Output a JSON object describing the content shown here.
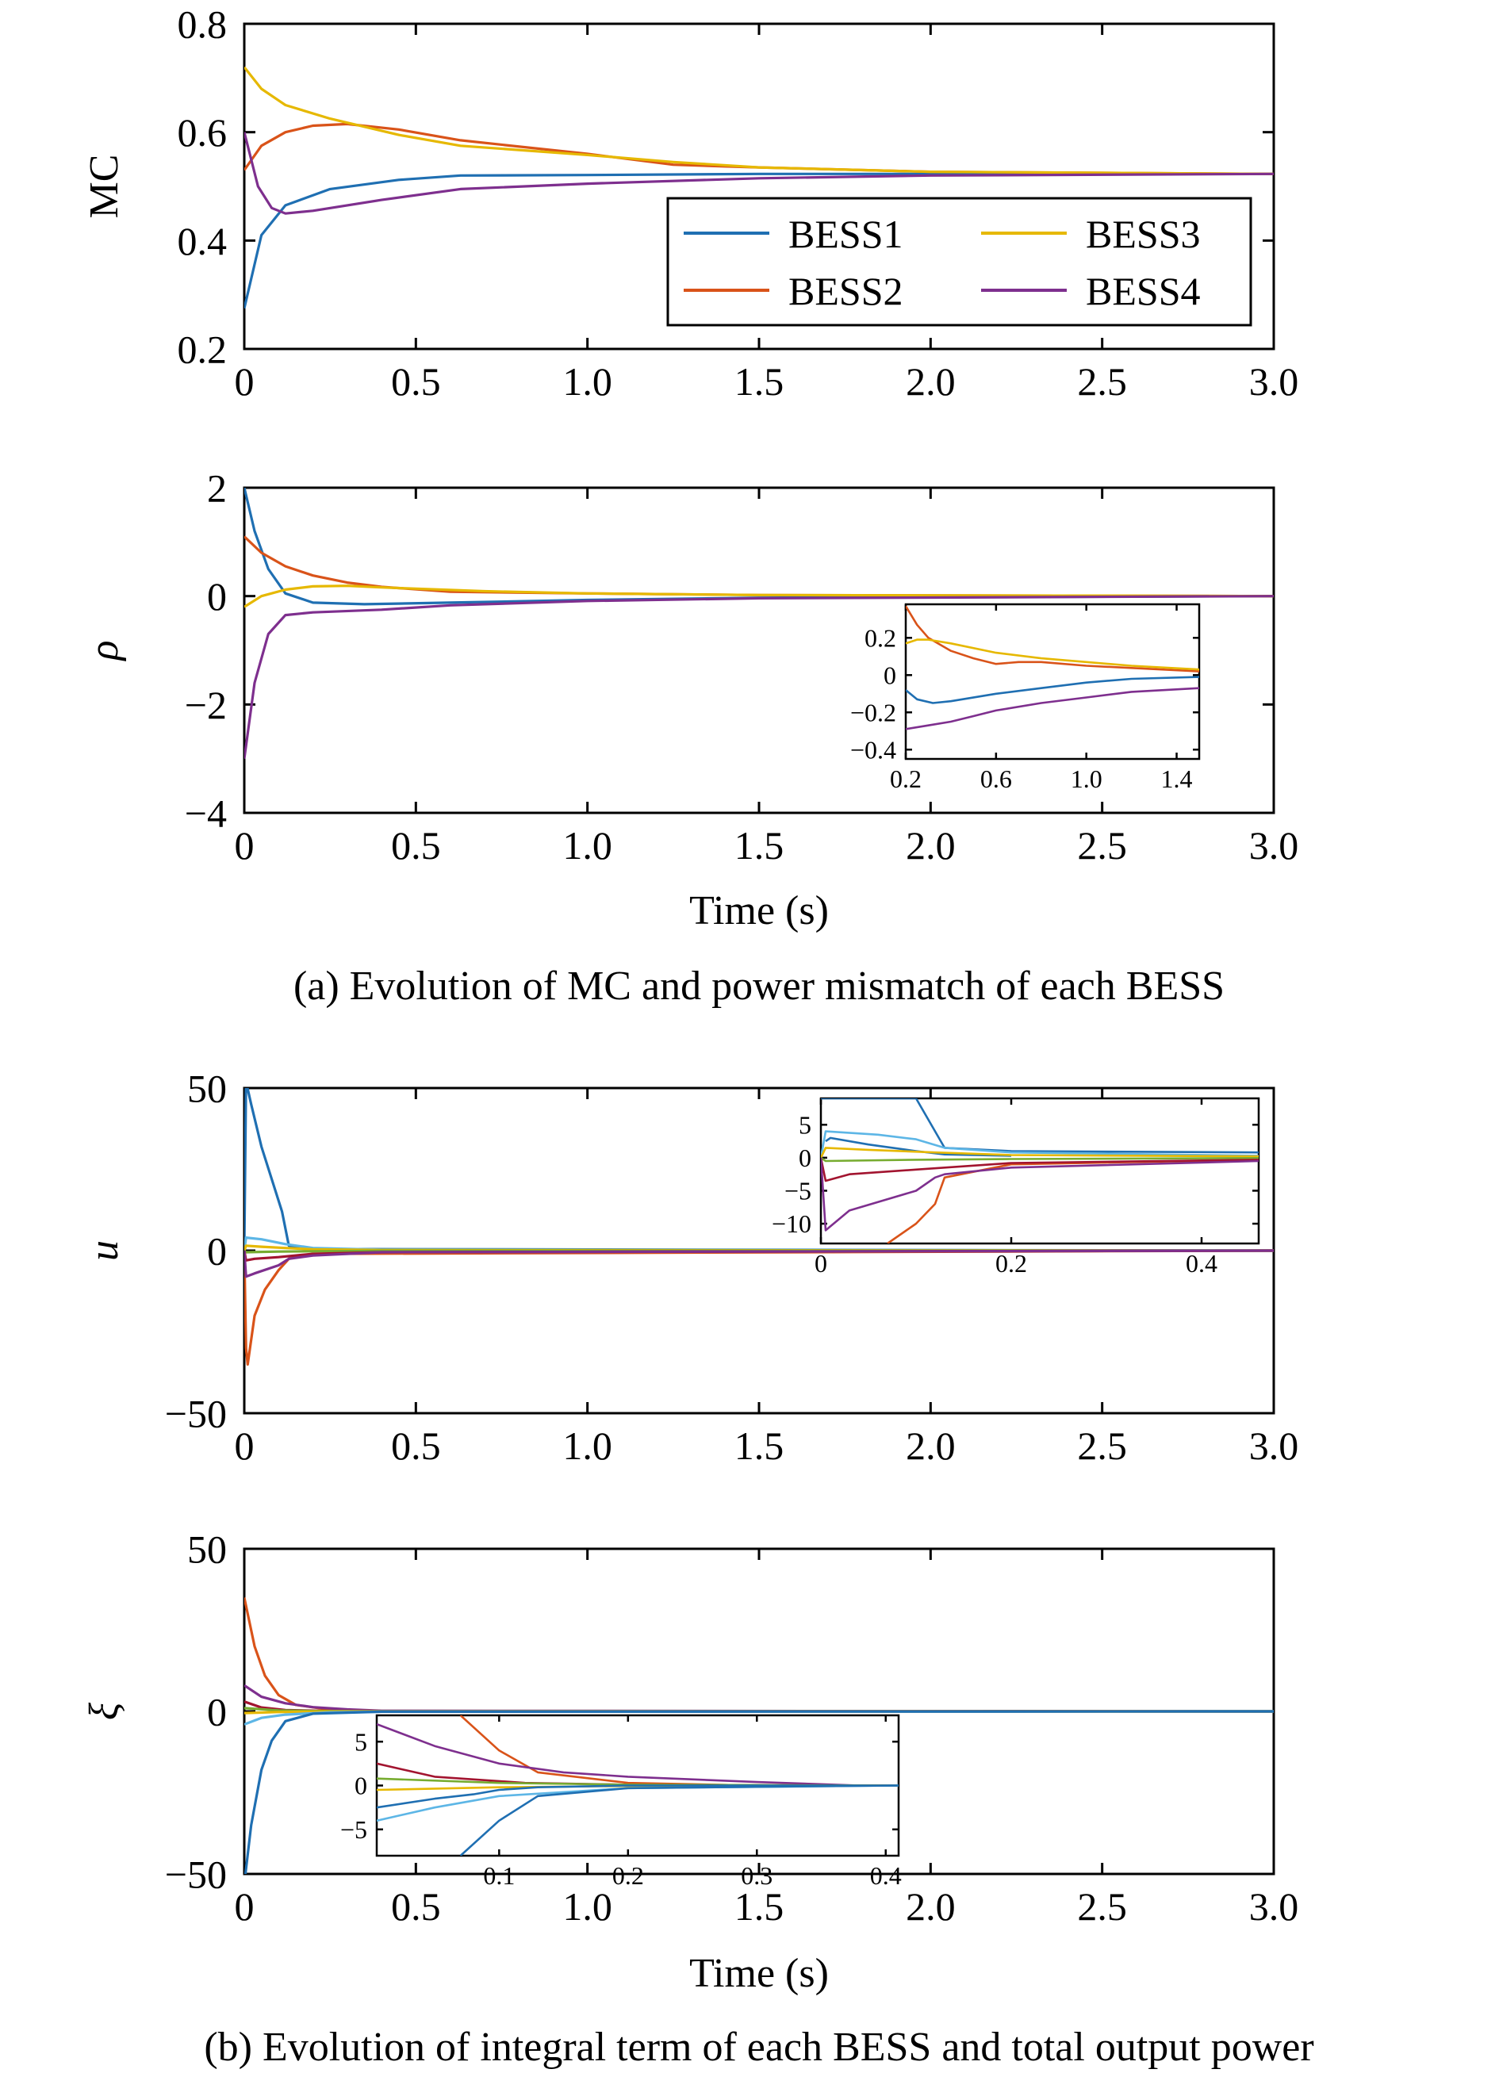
{
  "figure": {
    "caption_a": "(a) Evolution of MC and power mismatch of each BESS",
    "caption_b": "(b) Evolution of integral term of each BESS and total output power",
    "xlabel": "Time (s)"
  },
  "colors": {
    "BESS1": "#1f6fb2",
    "BESS2": "#d95319",
    "BESS3": "#e6b800",
    "BESS4": "#7e2f8e",
    "extra_lightblue": "#5db6e6",
    "extra_green": "#77ac30",
    "extra_darkred": "#a2142f",
    "extra_black": "#222222"
  },
  "chart_data": [
    {
      "id": "mc",
      "type": "line",
      "ylabel": "MC",
      "xlim": [
        0,
        3
      ],
      "ylim": [
        0.2,
        0.8
      ],
      "xticks": [
        "0",
        "0.5",
        "1.0",
        "1.5",
        "2.0",
        "2.5",
        "3.0"
      ],
      "yticks": [
        "0.2",
        "0.4",
        "0.6",
        "0.8"
      ],
      "legend": {
        "placement": "lower-right",
        "columns": 2,
        "order": [
          "BESS1",
          "BESS3",
          "BESS2",
          "BESS4"
        ]
      },
      "series": [
        {
          "name": "BESS1",
          "color": "BESS1",
          "x": [
            0,
            0.05,
            0.12,
            0.25,
            0.45,
            0.63,
            1.0,
            1.5,
            2.0,
            3.0
          ],
          "y": [
            0.275,
            0.41,
            0.465,
            0.495,
            0.512,
            0.52,
            0.521,
            0.523,
            0.523,
            0.523
          ]
        },
        {
          "name": "BESS2",
          "color": "BESS2",
          "x": [
            0,
            0.05,
            0.12,
            0.2,
            0.3,
            0.45,
            0.63,
            1.0,
            1.25,
            1.5,
            2.0,
            3.0
          ],
          "y": [
            0.53,
            0.575,
            0.6,
            0.612,
            0.615,
            0.605,
            0.585,
            0.56,
            0.54,
            0.535,
            0.527,
            0.523
          ]
        },
        {
          "name": "BESS3",
          "color": "BESS3",
          "x": [
            0,
            0.05,
            0.12,
            0.25,
            0.45,
            0.63,
            1.0,
            1.25,
            1.5,
            2.0,
            3.0
          ],
          "y": [
            0.72,
            0.68,
            0.65,
            0.625,
            0.595,
            0.575,
            0.558,
            0.545,
            0.535,
            0.527,
            0.523
          ]
        },
        {
          "name": "BESS4",
          "color": "BESS4",
          "x": [
            0,
            0.04,
            0.08,
            0.12,
            0.2,
            0.4,
            0.63,
            1.0,
            1.5,
            2.0,
            3.0
          ],
          "y": [
            0.6,
            0.5,
            0.46,
            0.45,
            0.455,
            0.475,
            0.495,
            0.505,
            0.515,
            0.52,
            0.523
          ]
        }
      ]
    },
    {
      "id": "rho",
      "type": "line",
      "ylabel": "ρ",
      "xlim": [
        0,
        3
      ],
      "ylim": [
        -4,
        2
      ],
      "xticks": [
        "0",
        "0.5",
        "1.0",
        "1.5",
        "2.0",
        "2.5",
        "3.0"
      ],
      "yticks": [
        "2",
        "0",
        "−2",
        "−4"
      ],
      "series": [
        {
          "name": "BESS1",
          "color": "BESS1",
          "x": [
            0,
            0.03,
            0.07,
            0.12,
            0.2,
            0.35,
            0.6,
            1.0,
            1.5,
            3.0
          ],
          "y": [
            2.0,
            1.2,
            0.5,
            0.05,
            -0.12,
            -0.15,
            -0.12,
            -0.07,
            -0.03,
            0
          ]
        },
        {
          "name": "BESS2",
          "color": "BESS2",
          "x": [
            0,
            0.05,
            0.12,
            0.2,
            0.3,
            0.4,
            0.6,
            1.0,
            1.5,
            3.0
          ],
          "y": [
            1.1,
            0.8,
            0.55,
            0.38,
            0.25,
            0.17,
            0.08,
            0.05,
            0.02,
            0
          ]
        },
        {
          "name": "BESS3",
          "color": "BESS3",
          "x": [
            0,
            0.05,
            0.12,
            0.2,
            0.3,
            0.4,
            0.7,
            1.0,
            1.5,
            3.0
          ],
          "y": [
            -0.2,
            0.0,
            0.12,
            0.18,
            0.19,
            0.16,
            0.09,
            0.05,
            0.02,
            0
          ]
        },
        {
          "name": "BESS4",
          "color": "BESS4",
          "x": [
            0,
            0.03,
            0.07,
            0.12,
            0.2,
            0.4,
            0.6,
            1.0,
            1.5,
            3.0
          ],
          "y": [
            -3.0,
            -1.6,
            -0.7,
            -0.35,
            -0.3,
            -0.25,
            -0.17,
            -0.09,
            -0.04,
            0
          ]
        }
      ],
      "inset": {
        "placement": "lower-right",
        "xlim": [
          0.2,
          1.5
        ],
        "ylim": [
          -0.45,
          0.38
        ],
        "xticks": [
          "0.2",
          "0.6",
          "1.0",
          "1.4"
        ],
        "yticks": [
          "0.2",
          "0",
          "−0.2",
          "−0.4"
        ],
        "series": [
          {
            "color": "BESS1",
            "x": [
              0.2,
              0.25,
              0.32,
              0.4,
              0.6,
              0.8,
              1.0,
              1.2,
              1.5
            ],
            "y": [
              -0.08,
              -0.13,
              -0.15,
              -0.14,
              -0.1,
              -0.07,
              -0.04,
              -0.02,
              -0.01
            ]
          },
          {
            "color": "BESS2",
            "x": [
              0.2,
              0.25,
              0.3,
              0.4,
              0.5,
              0.6,
              0.7,
              0.8,
              1.0,
              1.5
            ],
            "y": [
              0.37,
              0.27,
              0.2,
              0.13,
              0.09,
              0.06,
              0.07,
              0.07,
              0.05,
              0.02
            ]
          },
          {
            "color": "BESS3",
            "x": [
              0.2,
              0.25,
              0.3,
              0.4,
              0.6,
              0.8,
              1.0,
              1.2,
              1.5
            ],
            "y": [
              0.17,
              0.19,
              0.19,
              0.17,
              0.12,
              0.09,
              0.07,
              0.05,
              0.03
            ]
          },
          {
            "color": "BESS4",
            "x": [
              0.2,
              0.3,
              0.4,
              0.5,
              0.6,
              0.8,
              1.0,
              1.2,
              1.5
            ],
            "y": [
              -0.29,
              -0.27,
              -0.25,
              -0.22,
              -0.19,
              -0.15,
              -0.12,
              -0.09,
              -0.07
            ]
          }
        ]
      }
    },
    {
      "id": "u",
      "type": "line",
      "ylabel": "u",
      "xlim": [
        0,
        3
      ],
      "ylim": [
        -50,
        50
      ],
      "xticks": [
        "0",
        "0.5",
        "1.0",
        "1.5",
        "2.0",
        "2.5",
        "3.0"
      ],
      "yticks": [
        "50",
        "0",
        "−50"
      ],
      "series": [
        {
          "color": "BESS1",
          "x": [
            0,
            0.005,
            0.02,
            0.05,
            0.08,
            0.11,
            0.13,
            0.2,
            3.0
          ],
          "y": [
            0,
            52,
            45,
            32,
            22,
            12,
            1.5,
            0.5,
            0
          ]
        },
        {
          "color": "BESS2",
          "x": [
            0,
            0.005,
            0.01,
            0.03,
            0.06,
            0.1,
            0.13,
            0.2,
            3.0
          ],
          "y": [
            0,
            -30,
            -35,
            -20,
            -12,
            -6,
            -2.5,
            -1,
            0
          ]
        },
        {
          "color": "extra_lightblue",
          "x": [
            0,
            0.005,
            0.05,
            0.12,
            0.2,
            0.4,
            3.0
          ],
          "y": [
            0,
            4,
            3.5,
            2,
            0.8,
            0.3,
            0
          ]
        },
        {
          "color": "BESS3",
          "x": [
            0,
            0.005,
            0.05,
            0.12,
            0.2,
            0.4,
            3.0
          ],
          "y": [
            0,
            1.5,
            1.2,
            0.8,
            0.4,
            0.2,
            0
          ]
        },
        {
          "color": "extra_green",
          "x": [
            0,
            0.005,
            0.1,
            0.2,
            0.4,
            3.0
          ],
          "y": [
            0,
            -0.5,
            -0.3,
            -0.2,
            -0.1,
            0
          ]
        },
        {
          "color": "extra_darkred",
          "x": [
            0,
            0.005,
            0.03,
            0.1,
            0.2,
            0.4,
            3.0
          ],
          "y": [
            0,
            -3,
            -2.5,
            -2,
            -1,
            -0.5,
            0
          ]
        },
        {
          "color": "BESS4",
          "x": [
            0,
            0.005,
            0.03,
            0.1,
            0.13,
            0.2,
            0.4,
            3.0
          ],
          "y": [
            0,
            -8,
            -7,
            -4.5,
            -2.5,
            -1.5,
            -0.5,
            0
          ]
        }
      ],
      "inset": {
        "placement": "top-right",
        "xlim": [
          0,
          0.46
        ],
        "ylim": [
          -13,
          9
        ],
        "xticks": [
          "0",
          "0.2",
          "0.4"
        ],
        "yticks": [
          "5",
          "0",
          "−5",
          "−10"
        ],
        "series": [
          {
            "color": "BESS1",
            "x": [
              0,
              0.002,
              0.1,
              0.13,
              0.2,
              0.46
            ],
            "y": [
              9,
              9,
              9,
              1.5,
              1,
              0.8
            ]
          },
          {
            "color": "BESS2",
            "x": [
              0.07,
              0.1,
              0.12,
              0.13,
              0.2,
              0.46
            ],
            "y": [
              -13,
              -10,
              -7,
              -3,
              -1,
              -0.3
            ]
          },
          {
            "color": "extra_lightblue",
            "x": [
              0,
              0.005,
              0.06,
              0.1,
              0.13,
              0.2,
              0.46
            ],
            "y": [
              0,
              4,
              3.5,
              2.8,
              1.5,
              0.8,
              0.3
            ]
          },
          {
            "color": "BESS1",
            "x": [
              0.005,
              0.01,
              0.05,
              0.1,
              0.13,
              0.2
            ],
            "y": [
              2.5,
              3,
              2,
              1,
              0.5,
              0.3
            ]
          },
          {
            "color": "BESS3",
            "x": [
              0,
              0.005,
              0.05,
              0.12,
              0.2,
              0.46
            ],
            "y": [
              0,
              1.5,
              1.2,
              0.8,
              0.4,
              0.2
            ]
          },
          {
            "color": "extra_green",
            "x": [
              0,
              0.005,
              0.1,
              0.2,
              0.46
            ],
            "y": [
              0,
              -0.5,
              -0.3,
              -0.2,
              -0.05
            ]
          },
          {
            "color": "extra_darkred",
            "x": [
              0,
              0.005,
              0.03,
              0.1,
              0.2,
              0.46
            ],
            "y": [
              0,
              -3.5,
              -2.5,
              -1.8,
              -0.8,
              -0.3
            ]
          },
          {
            "color": "BESS4",
            "x": [
              0,
              0.005,
              0.03,
              0.1,
              0.12,
              0.13,
              0.2,
              0.46
            ],
            "y": [
              0,
              -11,
              -8,
              -5,
              -3,
              -2.5,
              -1.5,
              -0.5
            ]
          }
        ]
      }
    },
    {
      "id": "xi",
      "type": "line",
      "ylabel": "ξ",
      "xlim": [
        0,
        3
      ],
      "ylim": [
        -50,
        50
      ],
      "xticks": [
        "0",
        "0.5",
        "1.0",
        "1.5",
        "2.0",
        "2.5",
        "3.0"
      ],
      "yticks": [
        "50",
        "0",
        "−50"
      ],
      "series": [
        {
          "color": "BESS2",
          "x": [
            0,
            0.03,
            0.06,
            0.1,
            0.15,
            0.25,
            0.4,
            3.0
          ],
          "y": [
            35,
            20,
            11,
            5,
            2,
            0.5,
            0.1,
            0
          ]
        },
        {
          "color": "BESS4",
          "x": [
            0,
            0.05,
            0.12,
            0.2,
            0.3,
            0.4,
            3.0
          ],
          "y": [
            8,
            4.5,
            2.5,
            1.3,
            0.6,
            0.2,
            0
          ]
        },
        {
          "color": "extra_darkred",
          "x": [
            0,
            0.05,
            0.12,
            0.25,
            0.4,
            3.0
          ],
          "y": [
            3,
            1.2,
            0.4,
            0.1,
            0,
            0
          ]
        },
        {
          "color": "extra_green",
          "x": [
            0,
            0.1,
            0.2,
            0.4,
            3.0
          ],
          "y": [
            1,
            0.3,
            0.1,
            0,
            0
          ]
        },
        {
          "color": "BESS3",
          "x": [
            0,
            0.1,
            0.2,
            0.4,
            3.0
          ],
          "y": [
            -0.5,
            -0.2,
            -0.1,
            0,
            0
          ]
        },
        {
          "color": "extra_lightblue",
          "x": [
            0,
            0.05,
            0.12,
            0.25,
            0.4,
            3.0
          ],
          "y": [
            -4,
            -2,
            -1,
            -0.3,
            -0.1,
            0
          ]
        },
        {
          "color": "BESS1",
          "x": [
            0,
            0.02,
            0.05,
            0.08,
            0.12,
            0.2,
            0.4,
            3.0
          ],
          "y": [
            -53,
            -35,
            -18,
            -9,
            -3,
            -0.7,
            -0.1,
            0
          ]
        }
      ],
      "inset": {
        "placement": "bottom-center",
        "xlim": [
          0.005,
          0.41
        ],
        "ylim": [
          -8,
          8
        ],
        "xticks": [
          "0.1",
          "0.2",
          "0.3",
          "0.4"
        ],
        "yticks": [
          "5",
          "0",
          "−5"
        ],
        "series": [
          {
            "color": "BESS2",
            "x": [
              0.07,
              0.1,
              0.13,
              0.2,
              0.3,
              0.41
            ],
            "y": [
              8,
              4,
              1.5,
              0.3,
              0,
              0
            ]
          },
          {
            "color": "BESS4",
            "x": [
              0.005,
              0.05,
              0.1,
              0.15,
              0.2,
              0.3,
              0.38,
              0.41
            ],
            "y": [
              7,
              4.5,
              2.5,
              1.5,
              1,
              0.4,
              0,
              0
            ]
          },
          {
            "color": "extra_darkred",
            "x": [
              0.005,
              0.05,
              0.12,
              0.2,
              0.41
            ],
            "y": [
              2.5,
              1,
              0.3,
              0.1,
              0
            ]
          },
          {
            "color": "extra_green",
            "x": [
              0.005,
              0.1,
              0.2,
              0.41
            ],
            "y": [
              0.8,
              0.3,
              0.1,
              0
            ]
          },
          {
            "color": "BESS3",
            "x": [
              0.005,
              0.1,
              0.2,
              0.41
            ],
            "y": [
              -0.5,
              -0.2,
              -0.05,
              0
            ]
          },
          {
            "color": "extra_lightblue",
            "x": [
              0.005,
              0.05,
              0.1,
              0.2,
              0.41
            ],
            "y": [
              -4,
              -2.5,
              -1.2,
              -0.3,
              0
            ]
          },
          {
            "color": "BESS1",
            "x": [
              0.005,
              0.05,
              0.08,
              0.1,
              0.13,
              0.2,
              0.41
            ],
            "y": [
              -2.5,
              -1.5,
              -1,
              -0.5,
              -0.2,
              0,
              0
            ]
          },
          {
            "color": "BESS1",
            "x": [
              0.07,
              0.1,
              0.13,
              0.2,
              0.41
            ],
            "y": [
              -8,
              -4,
              -1.2,
              -0.3,
              0
            ]
          }
        ]
      }
    }
  ]
}
